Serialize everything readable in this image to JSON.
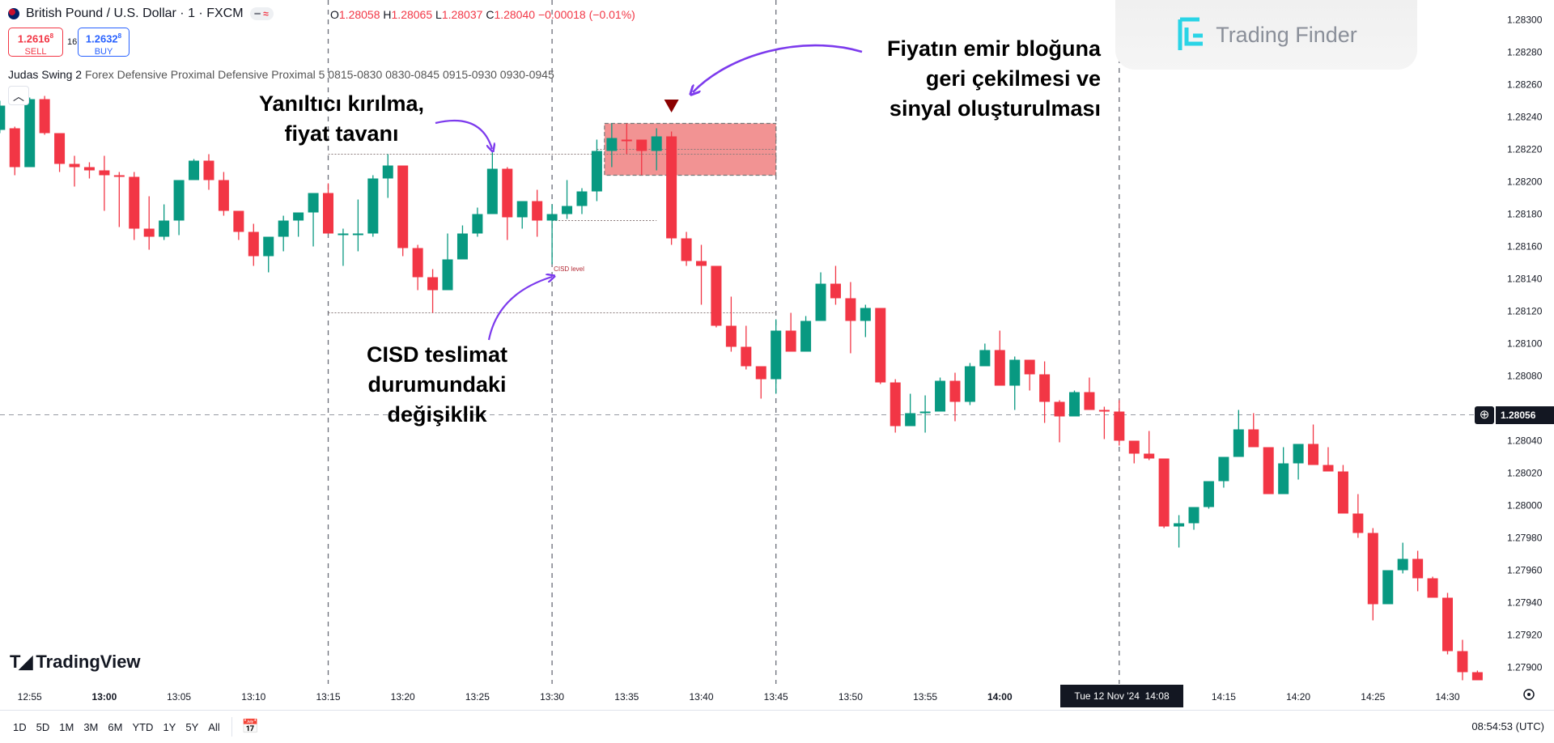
{
  "header": {
    "symbol": "British Pound / U.S. Dollar · 1 · FXCM",
    "pill_icons": [
      "minus-icon",
      "wave-icon"
    ],
    "ohlc": {
      "o_label": "O",
      "o": "1.28058",
      "h_label": "H",
      "h": "1.28065",
      "l_label": "L",
      "l": "1.28037",
      "c_label": "C",
      "c": "1.28040",
      "change": "−0.00018 (−0.01%)"
    },
    "sell": {
      "price": "1.2616",
      "sup": "8",
      "label": "SELL"
    },
    "spread": "16.0",
    "buy": {
      "price": "1.2632",
      "sup": "8",
      "label": "BUY"
    },
    "indicator": {
      "name": "Judas Swing 2",
      "params": "Forex Defensive Proximal Defensive Proximal 5 0815-0830 0830-0845 0915-0930 0930-0945"
    }
  },
  "annotations": {
    "false_break": [
      "Yanıltıcı kırılma,",
      "fiyat tavanı"
    ],
    "cisd": [
      "CISD teslimat",
      "durumundaki",
      "değişiklik"
    ],
    "pullback": [
      "Fiyatın emir bloğuna",
      "geri çekilmesi ve",
      "sinyal oluşturulması"
    ],
    "cisd_level": "CISD level"
  },
  "logos": {
    "trading_finder": "Trading Finder",
    "tradingview": "TradingView"
  },
  "crosshair": {
    "price": "1.28056",
    "time_label": "Tue 12 Nov '24  14:08"
  },
  "bottom_bar": {
    "ranges": [
      "1D",
      "5D",
      "1M",
      "3M",
      "6M",
      "YTD",
      "1Y",
      "5Y",
      "All"
    ],
    "clock": "08:54:53 (UTC)"
  },
  "colors": {
    "up": "#089981",
    "down": "#f23645",
    "annotation_arrow": "#7c3aed",
    "order_block": "#f08080"
  },
  "chart_data": {
    "type": "candlestick",
    "interval": "1",
    "price_ticks": [
      "1.28300",
      "1.28280",
      "1.28260",
      "1.28240",
      "1.28220",
      "1.28200",
      "1.28180",
      "1.28160",
      "1.28140",
      "1.28120",
      "1.28100",
      "1.28080",
      "1.28040",
      "1.28020",
      "1.28000",
      "1.27980",
      "1.27960",
      "1.27940",
      "1.27920",
      "1.27900"
    ],
    "ylim": [
      1.27875,
      1.28305
    ],
    "time_ticks": [
      [
        "12:55",
        false
      ],
      [
        "13:00",
        true
      ],
      [
        "13:05",
        false
      ],
      [
        "13:10",
        false
      ],
      [
        "13:15",
        false
      ],
      [
        "13:20",
        false
      ],
      [
        "13:25",
        false
      ],
      [
        "13:30",
        false
      ],
      [
        "13:35",
        false
      ],
      [
        "13:40",
        false
      ],
      [
        "13:45",
        false
      ],
      [
        "13:50",
        false
      ],
      [
        "13:55",
        false
      ],
      [
        "14:00",
        true
      ],
      [
        "14:15",
        false
      ],
      [
        "14:20",
        false
      ],
      [
        "14:25",
        false
      ],
      [
        "14:30",
        false
      ]
    ],
    "vertical_markers": [
      "13:15",
      "13:30",
      "13:45",
      "14:08"
    ],
    "levels": [
      {
        "price": 1.28217,
        "from": "13:15",
        "to": "13:45"
      },
      {
        "price": 1.28176,
        "from": "13:30",
        "to": "13:37"
      },
      {
        "price": 1.28119,
        "from": "13:15",
        "to": "13:45"
      },
      {
        "price": 1.2822,
        "from": "13:33",
        "to": "13:45"
      }
    ],
    "order_block": {
      "top": 1.28236,
      "bottom": 1.28204,
      "from": "13:34",
      "to": "13:45"
    },
    "signal": {
      "time": "13:38",
      "direction": "sell"
    },
    "cisd_level": {
      "time": "13:30",
      "price": 1.28149
    },
    "candles_ohlc": [
      [
        "12:53",
        1.28232,
        1.2825,
        1.2823,
        1.28247
      ],
      [
        "12:54",
        1.28233,
        1.28234,
        1.28204,
        1.28209
      ],
      [
        "12:55",
        1.28209,
        1.28252,
        1.28209,
        1.28251
      ],
      [
        "12:56",
        1.28251,
        1.28253,
        1.28229,
        1.2823
      ],
      [
        "12:57",
        1.2823,
        1.2823,
        1.28206,
        1.28211
      ],
      [
        "12:58",
        1.28211,
        1.28216,
        1.28197,
        1.28209
      ],
      [
        "12:59",
        1.28209,
        1.28212,
        1.28202,
        1.28207
      ],
      [
        "13:00",
        1.28207,
        1.28216,
        1.28182,
        1.28204
      ],
      [
        "13:01",
        1.28204,
        1.28206,
        1.28172,
        1.28203
      ],
      [
        "13:02",
        1.28203,
        1.28206,
        1.28164,
        1.28171
      ],
      [
        "13:03",
        1.28171,
        1.28191,
        1.28158,
        1.28166
      ],
      [
        "13:04",
        1.28166,
        1.28186,
        1.28164,
        1.28176
      ],
      [
        "13:05",
        1.28176,
        1.28201,
        1.28167,
        1.28201
      ],
      [
        "13:06",
        1.28201,
        1.28214,
        1.28201,
        1.28213
      ],
      [
        "13:07",
        1.28213,
        1.28217,
        1.28195,
        1.28201
      ],
      [
        "13:08",
        1.28201,
        1.28206,
        1.28179,
        1.28182
      ],
      [
        "13:09",
        1.28182,
        1.28182,
        1.28164,
        1.28169
      ],
      [
        "13:10",
        1.28169,
        1.28174,
        1.28148,
        1.28154
      ],
      [
        "13:11",
        1.28154,
        1.28166,
        1.28144,
        1.28166
      ],
      [
        "13:12",
        1.28166,
        1.28179,
        1.28157,
        1.28176
      ],
      [
        "13:13",
        1.28176,
        1.28181,
        1.28166,
        1.28181
      ],
      [
        "13:14",
        1.28181,
        1.28193,
        1.2816,
        1.28193
      ],
      [
        "13:15",
        1.28193,
        1.28199,
        1.28168,
        1.28168
      ],
      [
        "13:16",
        1.28168,
        1.28171,
        1.28148,
        1.28168
      ],
      [
        "13:17",
        1.28168,
        1.28189,
        1.28157,
        1.28168
      ],
      [
        "13:18",
        1.28168,
        1.28204,
        1.28166,
        1.28202
      ],
      [
        "13:19",
        1.28202,
        1.28217,
        1.2819,
        1.2821
      ],
      [
        "13:20",
        1.2821,
        1.2821,
        1.28154,
        1.28159
      ],
      [
        "13:21",
        1.28159,
        1.28161,
        1.28133,
        1.28141
      ],
      [
        "13:22",
        1.28141,
        1.28146,
        1.28119,
        1.28133
      ],
      [
        "13:23",
        1.28133,
        1.28168,
        1.28133,
        1.28152
      ],
      [
        "13:24",
        1.28152,
        1.28173,
        1.28152,
        1.28168
      ],
      [
        "13:25",
        1.28168,
        1.28184,
        1.28166,
        1.2818
      ],
      [
        "13:26",
        1.2818,
        1.28218,
        1.2818,
        1.28208
      ],
      [
        "13:27",
        1.28208,
        1.28209,
        1.28164,
        1.28178
      ],
      [
        "13:28",
        1.28178,
        1.28188,
        1.28171,
        1.28188
      ],
      [
        "13:29",
        1.28188,
        1.28195,
        1.28166,
        1.28176
      ],
      [
        "13:30",
        1.28176,
        1.28186,
        1.28149,
        1.2818
      ],
      [
        "13:31",
        1.2818,
        1.28201,
        1.28177,
        1.28185
      ],
      [
        "13:32",
        1.28185,
        1.28196,
        1.2818,
        1.28194
      ],
      [
        "13:33",
        1.28194,
        1.28226,
        1.28188,
        1.28219
      ],
      [
        "13:34",
        1.28219,
        1.28236,
        1.28209,
        1.28227
      ],
      [
        "13:35",
        1.28226,
        1.28236,
        1.28217,
        1.28225
      ],
      [
        "13:36",
        1.28226,
        1.28226,
        1.28204,
        1.28219
      ],
      [
        "13:37",
        1.28219,
        1.28233,
        1.28207,
        1.28228
      ],
      [
        "13:38",
        1.28228,
        1.28231,
        1.28161,
        1.28165
      ],
      [
        "13:39",
        1.28165,
        1.28169,
        1.28148,
        1.28151
      ],
      [
        "13:40",
        1.28151,
        1.28161,
        1.28124,
        1.28148
      ],
      [
        "13:41",
        1.28148,
        1.28148,
        1.2811,
        1.28111
      ],
      [
        "13:42",
        1.28111,
        1.28129,
        1.28095,
        1.28098
      ],
      [
        "13:43",
        1.28098,
        1.28111,
        1.28084,
        1.28086
      ],
      [
        "13:44",
        1.28086,
        1.28086,
        1.28066,
        1.28078
      ],
      [
        "13:45",
        1.28078,
        1.28115,
        1.28069,
        1.28108
      ],
      [
        "13:46",
        1.28108,
        1.28119,
        1.28095,
        1.28095
      ],
      [
        "13:47",
        1.28095,
        1.28117,
        1.28095,
        1.28114
      ],
      [
        "13:48",
        1.28114,
        1.28144,
        1.28114,
        1.28137
      ],
      [
        "13:49",
        1.28137,
        1.28148,
        1.28124,
        1.28128
      ],
      [
        "13:50",
        1.28128,
        1.28138,
        1.28094,
        1.28114
      ],
      [
        "13:51",
        1.28114,
        1.28124,
        1.28104,
        1.28122
      ],
      [
        "13:52",
        1.28122,
        1.28122,
        1.28075,
        1.28076
      ],
      [
        "13:53",
        1.28076,
        1.28078,
        1.28045,
        1.28049
      ],
      [
        "13:54",
        1.28049,
        1.28069,
        1.28049,
        1.28057
      ],
      [
        "13:55",
        1.28057,
        1.28068,
        1.28045,
        1.28058
      ],
      [
        "13:56",
        1.28058,
        1.28079,
        1.28058,
        1.28077
      ],
      [
        "13:57",
        1.28077,
        1.28082,
        1.28052,
        1.28064
      ],
      [
        "13:58",
        1.28064,
        1.28088,
        1.28062,
        1.28086
      ],
      [
        "13:59",
        1.28086,
        1.281,
        1.28086,
        1.28096
      ],
      [
        "14:00",
        1.28096,
        1.28108,
        1.28074,
        1.28074
      ],
      [
        "14:01",
        1.28074,
        1.28092,
        1.28059,
        1.2809
      ],
      [
        "14:02",
        1.2809,
        1.2809,
        1.28071,
        1.28081
      ],
      [
        "14:03",
        1.28081,
        1.28089,
        1.28051,
        1.28064
      ],
      [
        "14:04",
        1.28064,
        1.28065,
        1.28039,
        1.28055
      ],
      [
        "14:05",
        1.28055,
        1.28071,
        1.28055,
        1.2807
      ],
      [
        "14:06",
        1.2807,
        1.28079,
        1.28059,
        1.28059
      ],
      [
        "14:07",
        1.28059,
        1.28061,
        1.28041,
        1.28058
      ],
      [
        "14:08",
        1.28058,
        1.28065,
        1.28037,
        1.2804
      ],
      [
        "14:09",
        1.2804,
        1.2804,
        1.28026,
        1.28032
      ],
      [
        "14:10",
        1.28032,
        1.28046,
        1.28028,
        1.28029
      ],
      [
        "14:11",
        1.28029,
        1.28029,
        1.27986,
        1.27987
      ],
      [
        "14:12",
        1.27987,
        1.27994,
        1.27974,
        1.27989
      ],
      [
        "14:13",
        1.27989,
        1.27999,
        1.27985,
        1.27999
      ],
      [
        "14:14",
        1.27999,
        1.28015,
        1.27998,
        1.28015
      ],
      [
        "14:15",
        1.28015,
        1.2803,
        1.28011,
        1.2803
      ],
      [
        "14:16",
        1.2803,
        1.28059,
        1.2803,
        1.28047
      ],
      [
        "14:17",
        1.28047,
        1.28057,
        1.28036,
        1.28036
      ],
      [
        "14:18",
        1.28036,
        1.28036,
        1.28007,
        1.28007
      ],
      [
        "14:19",
        1.28007,
        1.28036,
        1.28007,
        1.28026
      ],
      [
        "14:20",
        1.28026,
        1.28038,
        1.28016,
        1.28038
      ],
      [
        "14:21",
        1.28038,
        1.2805,
        1.28025,
        1.28025
      ],
      [
        "14:22",
        1.28025,
        1.28036,
        1.28021,
        1.28021
      ],
      [
        "14:23",
        1.28021,
        1.28025,
        1.27995,
        1.27995
      ],
      [
        "14:24",
        1.27995,
        1.28007,
        1.2798,
        1.27983
      ],
      [
        "14:25",
        1.27983,
        1.27986,
        1.27929,
        1.27939
      ],
      [
        "14:26",
        1.27939,
        1.2796,
        1.27939,
        1.2796
      ],
      [
        "14:27",
        1.2796,
        1.27977,
        1.27958,
        1.27967
      ],
      [
        "14:28",
        1.27967,
        1.27972,
        1.27947,
        1.27955
      ],
      [
        "14:29",
        1.27955,
        1.27956,
        1.27943,
        1.27943
      ],
      [
        "14:30",
        1.27943,
        1.27946,
        1.27908,
        1.2791
      ],
      [
        "14:31",
        1.2791,
        1.27917,
        1.27892,
        1.27897
      ],
      [
        "14:32",
        1.27897,
        1.27898,
        1.27892,
        1.27892
      ]
    ]
  }
}
